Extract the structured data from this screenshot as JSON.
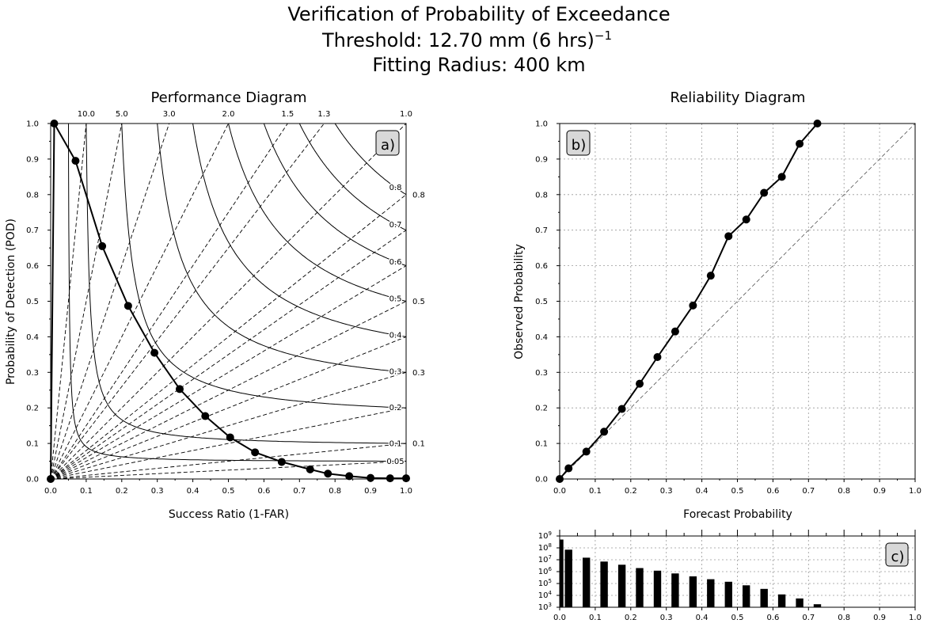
{
  "title_lines": [
    "Verification of Probability of Exceedance",
    "Threshold: 12.70 mm (6 hrs)",
    "Fitting Radius: 400 km"
  ],
  "title_superscript": "−1",
  "chart_data": [
    {
      "id": "a",
      "type": "line",
      "title": "Performance Diagram",
      "panel_label": "a)",
      "xlabel": "Success Ratio (1-FAR)",
      "ylabel": "Probability of Detection (POD)",
      "xlim": [
        0,
        1
      ],
      "ylim": [
        0,
        1
      ],
      "xticks": [
        "0.0",
        "0.1",
        "0.2",
        "0.3",
        "0.4",
        "0.5",
        "0.6",
        "0.7",
        "0.8",
        "0.9",
        "1.0"
      ],
      "yticks": [
        "0.0",
        "0.1",
        "0.2",
        "0.3",
        "0.4",
        "0.5",
        "0.6",
        "0.7",
        "0.8",
        "0.9",
        "1.0"
      ],
      "csi_levels": [
        0.05,
        0.1,
        0.2,
        0.3,
        0.4,
        0.5,
        0.6,
        0.7,
        0.8
      ],
      "csi_labels": [
        "0.05",
        "0.1",
        "0.2",
        "0.3",
        "0.4",
        "0.5",
        "0.6",
        "0.7",
        "0.8"
      ],
      "bias_levels": [
        10.0,
        5.0,
        3.0,
        2.0,
        1.5,
        1.3,
        1.0,
        0.8,
        0.5,
        0.3,
        0.1
      ],
      "bias_top_labels": [
        "10.0",
        "5.0",
        "3.0",
        "2.0",
        "1.5",
        "1.3",
        "1.0"
      ],
      "bias_right_labels": [
        "0.8",
        "0.5",
        "0.3",
        "0.1"
      ],
      "extra_bias_lines": [
        0.7,
        0.6,
        0.4,
        0.2,
        0.05
      ],
      "series": [
        {
          "x": [
            0.0,
            0.01,
            0.07,
            0.145,
            0.218,
            0.292,
            0.363,
            0.435,
            0.505,
            0.575,
            0.65,
            0.73,
            0.78,
            0.84,
            0.9,
            0.955,
            1.0
          ],
          "y": [
            0.0,
            1.0,
            0.895,
            0.655,
            0.487,
            0.355,
            0.253,
            0.177,
            0.117,
            0.075,
            0.048,
            0.027,
            0.015,
            0.008,
            0.003,
            0.002,
            0.002
          ]
        }
      ]
    },
    {
      "id": "b",
      "type": "line",
      "title": "Reliability Diagram",
      "panel_label": "b)",
      "xlabel": "Forecast Probability",
      "ylabel": "Observed Probability",
      "xlim": [
        0,
        1
      ],
      "ylim": [
        0,
        1
      ],
      "grid": true,
      "xticks": [
        "0.0",
        "0.1",
        "0.2",
        "0.3",
        "0.4",
        "0.5",
        "0.6",
        "0.7",
        "0.8",
        "0.9",
        "1.0"
      ],
      "yticks": [
        "0.0",
        "0.1",
        "0.2",
        "0.3",
        "0.4",
        "0.5",
        "0.6",
        "0.7",
        "0.8",
        "0.9",
        "1.0"
      ],
      "series": [
        {
          "x": [
            0.0,
            0.025,
            0.075,
            0.125,
            0.175,
            0.225,
            0.275,
            0.325,
            0.375,
            0.425,
            0.475,
            0.525,
            0.575,
            0.625,
            0.675,
            0.725
          ],
          "y": [
            0.0,
            0.03,
            0.077,
            0.133,
            0.197,
            0.268,
            0.343,
            0.415,
            0.488,
            0.572,
            0.683,
            0.73,
            0.805,
            0.85,
            0.943,
            1.0
          ]
        }
      ]
    },
    {
      "id": "c",
      "type": "bar",
      "panel_label": "c)",
      "yscale": "log",
      "ylim_exp": [
        3,
        9
      ],
      "xlim": [
        0,
        1
      ],
      "grid": true,
      "xticks": [
        "0.0",
        "0.1",
        "0.2",
        "0.3",
        "0.4",
        "0.5",
        "0.6",
        "0.7",
        "0.8",
        "0.9",
        "1.0"
      ],
      "yticks_exp": [
        "3",
        "4",
        "5",
        "6",
        "7",
        "8",
        "9"
      ],
      "ytick_base": "10",
      "x": [
        0.0,
        0.025,
        0.075,
        0.125,
        0.175,
        0.225,
        0.275,
        0.325,
        0.375,
        0.425,
        0.475,
        0.525,
        0.575,
        0.625,
        0.675,
        0.725
      ],
      "values": [
        500000000,
        70000000,
        15000000,
        7000000,
        3800000,
        2000000,
        1200000,
        700000,
        400000,
        230000,
        140000,
        70000,
        35000,
        12000,
        5500,
        1800
      ]
    }
  ]
}
